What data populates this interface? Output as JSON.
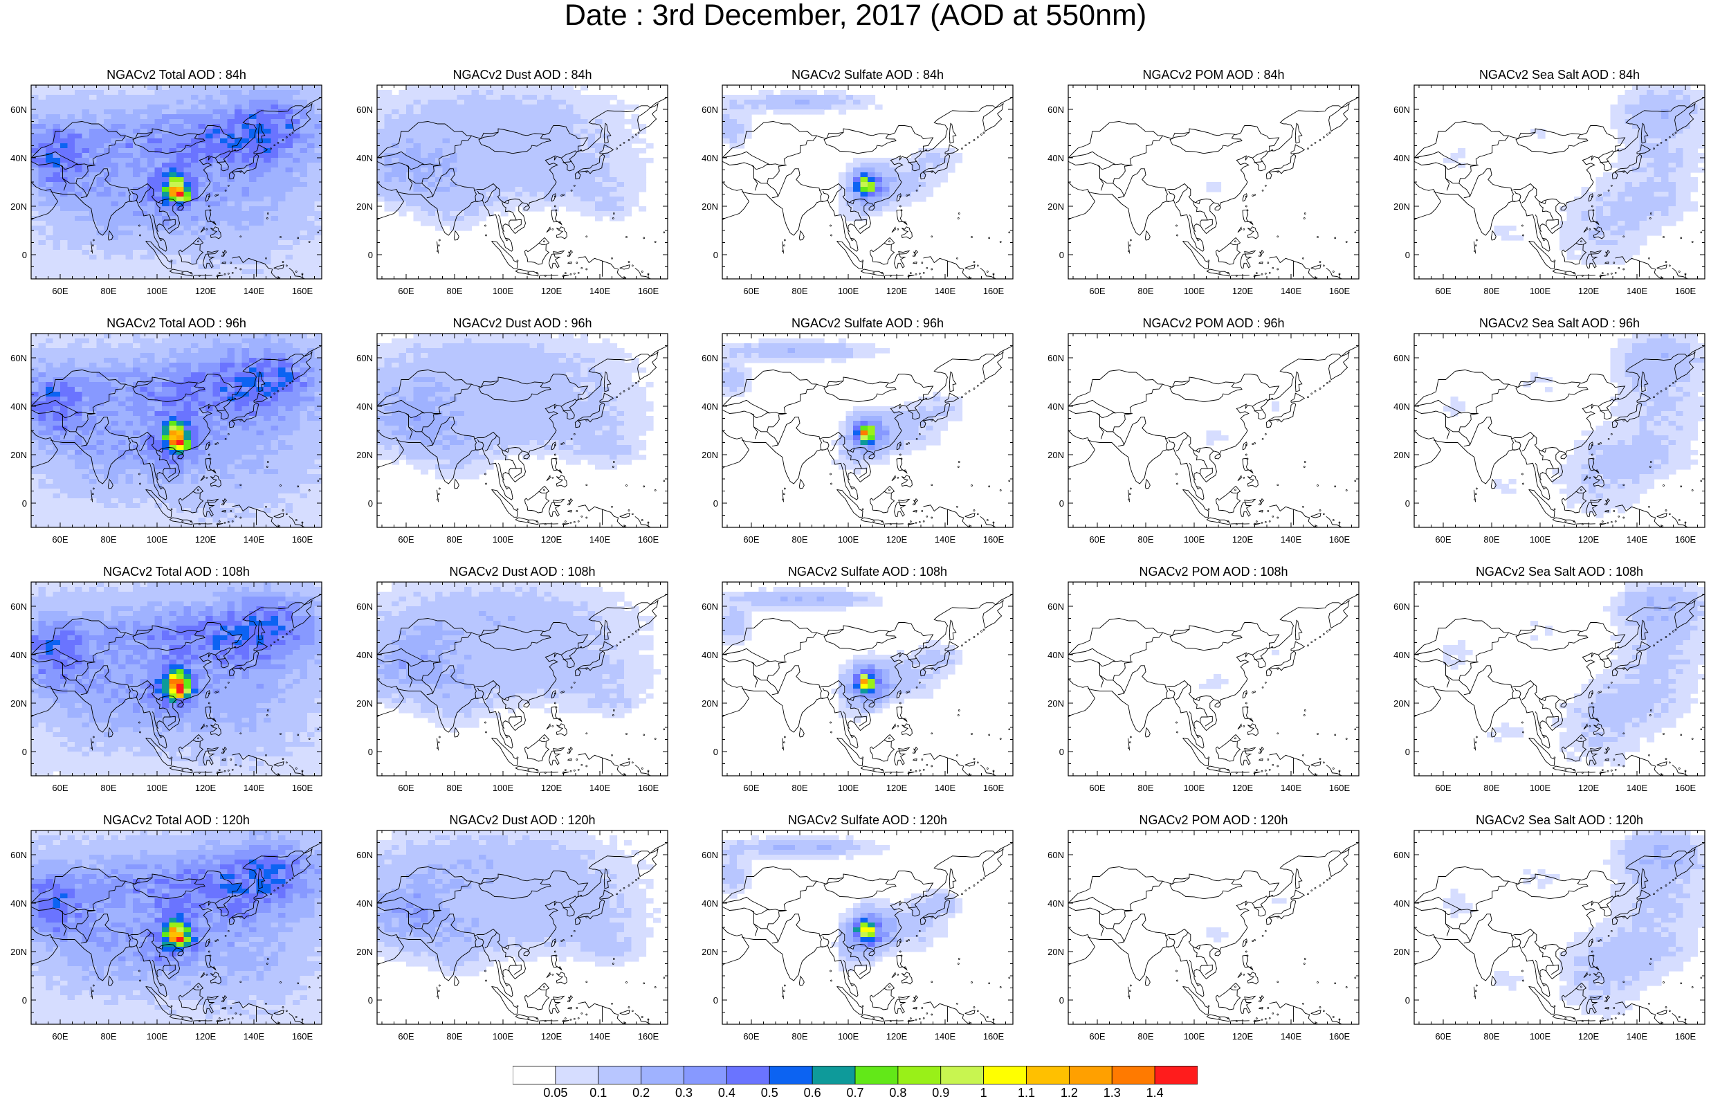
{
  "title": "Date : 3rd December, 2017 (AOD at 550nm)",
  "panels": [
    {
      "title": "NGACv2 Total AOD : 84h",
      "kind": "total",
      "hour": 84
    },
    {
      "title": "NGACv2 Dust AOD : 84h",
      "kind": "dust",
      "hour": 84
    },
    {
      "title": "NGACv2 Sulfate AOD : 84h",
      "kind": "sulfate",
      "hour": 84
    },
    {
      "title": "NGACv2 POM AOD : 84h",
      "kind": "pom",
      "hour": 84
    },
    {
      "title": "NGACv2 Sea Salt AOD : 84h",
      "kind": "seasalt",
      "hour": 84
    },
    {
      "title": "NGACv2 Total AOD : 96h",
      "kind": "total",
      "hour": 96
    },
    {
      "title": "NGACv2 Dust AOD : 96h",
      "kind": "dust",
      "hour": 96
    },
    {
      "title": "NGACv2 Sulfate AOD : 96h",
      "kind": "sulfate",
      "hour": 96
    },
    {
      "title": "NGACv2 POM AOD : 96h",
      "kind": "pom",
      "hour": 96
    },
    {
      "title": "NGACv2 Sea Salt AOD : 96h",
      "kind": "seasalt",
      "hour": 96
    },
    {
      "title": "NGACv2 Total AOD : 108h",
      "kind": "total",
      "hour": 108
    },
    {
      "title": "NGACv2 Dust AOD : 108h",
      "kind": "dust",
      "hour": 108
    },
    {
      "title": "NGACv2 Sulfate AOD : 108h",
      "kind": "sulfate",
      "hour": 108
    },
    {
      "title": "NGACv2 POM AOD : 108h",
      "kind": "pom",
      "hour": 108
    },
    {
      "title": "NGACv2 Sea Salt AOD : 108h",
      "kind": "seasalt",
      "hour": 108
    },
    {
      "title": "NGACv2 Total AOD : 120h",
      "kind": "total",
      "hour": 120
    },
    {
      "title": "NGACv2 Dust AOD : 120h",
      "kind": "dust",
      "hour": 120
    },
    {
      "title": "NGACv2 Sulfate AOD : 120h",
      "kind": "sulfate",
      "hour": 120
    },
    {
      "title": "NGACv2 POM AOD : 120h",
      "kind": "pom",
      "hour": 120
    },
    {
      "title": "NGACv2 Sea Salt  AOD : 120h",
      "kind": "seasalt",
      "hour": 120
    }
  ],
  "map": {
    "lon_range": [
      48,
      168
    ],
    "lat_range": [
      -10,
      70
    ],
    "x_ticks": [
      "60E",
      "80E",
      "100E",
      "120E",
      "140E",
      "160E"
    ],
    "x_tick_values": [
      60,
      80,
      100,
      120,
      140,
      160
    ],
    "y_ticks": [
      "60N",
      "40N",
      "20N",
      "0"
    ],
    "y_tick_values": [
      60,
      40,
      20,
      0
    ]
  },
  "colorbar": {
    "labels": [
      "0.05",
      "0.1",
      "0.2",
      "0.3",
      "0.4",
      "0.5",
      "0.6",
      "0.7",
      "0.8",
      "0.9",
      "1",
      "1.1",
      "1.2",
      "1.3",
      "1.4"
    ],
    "colors": [
      "#ffffff",
      "#d6ddff",
      "#b8c6ff",
      "#9fb2ff",
      "#8799ff",
      "#6a74ff",
      "#0c63f2",
      "#0e9a9a",
      "#62e818",
      "#99f018",
      "#c8f550",
      "#ffff00",
      "#ffc000",
      "#ffa000",
      "#ff7a00",
      "#ff1c1c"
    ]
  }
}
